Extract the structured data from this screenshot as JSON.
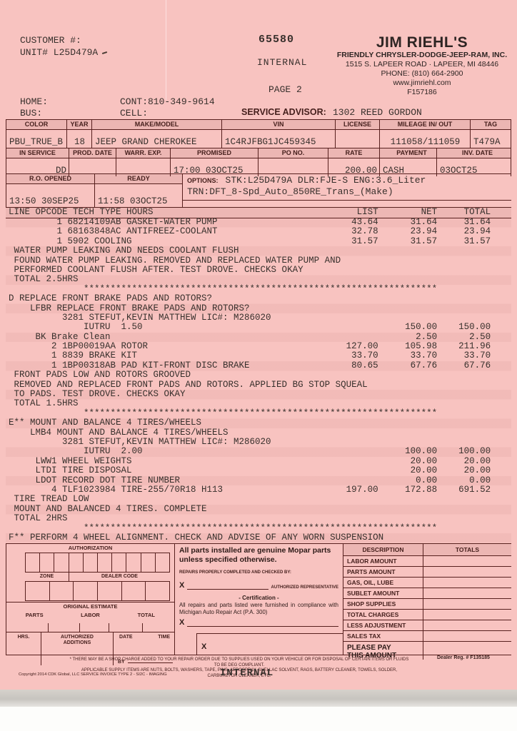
{
  "page": {
    "ro_number": "65580",
    "internal_top": "INTERNAL",
    "page_label": "PAGE 2",
    "paper_color": "#f8c3c0",
    "line_color": "#57201e"
  },
  "dealer": {
    "name": "JIM RIEHL'S",
    "line1": "FRIENDLY CHRYSLER-DODGE-JEEP-RAM, INC.",
    "line2": "1515 S. LAPEER ROAD  ·  LAPEER, MI 48446",
    "line3": "PHONE: (810) 664-2900",
    "line4": "www.jimriehl.com",
    "line5": "F157186"
  },
  "customer": {
    "customer_line": "CUSTOMER #:",
    "unit_line": "UNIT# L25D479A",
    "home_label": "HOME:",
    "cont_value": "CONT:810-349-9614",
    "bus_label": "BUS:",
    "cell_label": "CELL:",
    "advisor_label": "SERVICE ADVISOR:",
    "advisor_value": "1302 REED GORDON"
  },
  "vehicle": {
    "row1_headers": [
      "COLOR",
      "YEAR",
      "MAKE/MODEL",
      "VIN",
      "LICENSE",
      "MILEAGE IN/ OUT",
      "TAG"
    ],
    "row1_values": [
      "PBU_TRUE_B",
      "18",
      "JEEP GRAND CHEROKEE",
      "1C4RJFBG1JC459345",
      "",
      "111058/111059",
      "T479A"
    ],
    "row2_headers": [
      "IN SERVICE",
      "PROD. DATE",
      "WARR. EXP.",
      "PROMISED",
      "PO NO.",
      "RATE",
      "PAYMENT",
      "INV. DATE"
    ],
    "row2_values": [
      "DD",
      "",
      "",
      "17:00 03OCT25",
      "",
      "200.00",
      "CASH",
      "03OCT25"
    ],
    "ro_opened_label": "R.O. OPENED",
    "ready_label": "READY",
    "ro_opened_value": "13:50 30SEP25",
    "ready_value": "11:58 03OCT25",
    "options_label": "OPTIONS:",
    "options_line1": "STK:L25D479A DLR:FJE-S ENG:3.6_Liter",
    "options_line2": "TRN:DFT_8-Spd_Auto_850RE_Trans_(Make)"
  },
  "invoice": {
    "header": {
      "i": 0,
      "t": "LINE OPCODE TECH TYPE HOURS",
      "l": "LIST",
      "n": "NET",
      "o": "TOTAL"
    },
    "lines": [
      {
        "i": 9,
        "t": "1 68214109AB GASKET-WATER PUMP",
        "l": "43.64",
        "n": "31.64",
        "o": "31.64"
      },
      {
        "i": 9,
        "t": "1 68163848AC ANTIFREEZ-COOLANT",
        "l": "32.78",
        "n": "23.94",
        "o": "23.94"
      },
      {
        "i": 9,
        "t": "1 5902 COOLING",
        "l": "31.57",
        "n": "31.57",
        "o": "31.57"
      },
      {
        "i": 1,
        "t": "WATER PUMP LEAKING AND NEEDS COOLANT FLUSH"
      },
      {
        "i": 1,
        "t": "FOUND WATER PUMP LEAKING. REMOVED AND REPLACED WATER PUMP AND"
      },
      {
        "i": 1,
        "t": "PERFORMED COOLANT FLUSH AFTER. TEST DROVE. CHECKS OKAY"
      },
      {
        "i": 1,
        "t": "TOTAL 2.5HRS"
      },
      {
        "i": 14,
        "t": "******************************************************************"
      },
      {
        "i": 0,
        "t": "D REPLACE FRONT BRAKE PADS AND ROTORS?"
      },
      {
        "i": 4,
        "t": "LFBR REPLACE FRONT BRAKE PADS AND ROTORS?"
      },
      {
        "i": 10,
        "t": "3281 STEFUT,KEVIN MATTHEW LIC#: M286020"
      },
      {
        "i": 14,
        "t": "IUTRU  1.50",
        "n": "150.00",
        "o": "150.00"
      },
      {
        "i": 5,
        "t": "BK Brake Clean",
        "n": "2.50",
        "o": "2.50"
      },
      {
        "i": 8,
        "t": "2 1BP00019AA ROTOR",
        "l": "127.00",
        "n": "105.98",
        "o": "211.96"
      },
      {
        "i": 8,
        "t": "1 8839 BRAKE KIT",
        "l": "33.70",
        "n": "33.70",
        "o": "33.70"
      },
      {
        "i": 8,
        "t": "1 1BP00318AB PAD KIT-FRONT DISC BRAKE",
        "l": "80.65",
        "n": "67.76",
        "o": "67.76"
      },
      {
        "i": 1,
        "t": "FRONT PADS LOW AND ROTORS GROOVED"
      },
      {
        "i": 1,
        "t": "REMOVED AND REPLACED FRONT PADS AND ROTORS. APPLIED BG STOP SQUEAL"
      },
      {
        "i": 1,
        "t": "TO PADS. TEST DROVE. CHECKS OKAY"
      },
      {
        "i": 1,
        "t": "TOTAL 1.5HRS"
      },
      {
        "i": 14,
        "t": "******************************************************************"
      },
      {
        "i": 0,
        "t": "E** MOUNT AND BALANCE 4 TIRES/WHEELS"
      },
      {
        "i": 4,
        "t": "LMB4 MOUNT AND BALANCE 4 TIRES/WHEELS"
      },
      {
        "i": 10,
        "t": "3281 STEFUT,KEVIN MATTHEW LIC#: M286020"
      },
      {
        "i": 14,
        "t": "IUTRU  2.00",
        "n": "100.00",
        "o": "100.00"
      },
      {
        "i": 5,
        "t": "LWW1 WHEEL WEIGHTS",
        "n": "20.00",
        "o": "20.00"
      },
      {
        "i": 5,
        "t": "LTDI TIRE DISPOSAL",
        "n": "20.00",
        "o": "20.00"
      },
      {
        "i": 5,
        "t": "LDOT RECORD DOT TIRE NUMBER",
        "n": "0.00",
        "o": "0.00"
      },
      {
        "i": 8,
        "t": "4 TLF1023984 TIRE-255/70R18 H113",
        "l": "197.00",
        "n": "172.88",
        "o": "691.52"
      },
      {
        "i": 1,
        "t": "TIRE TREAD LOW"
      },
      {
        "i": 1,
        "t": "MOUNT AND BALANCED 4 TIRES. COMPLETE"
      },
      {
        "i": 1,
        "t": "TOTAL 2HRS"
      },
      {
        "i": 14,
        "t": "******************************************************************"
      },
      {
        "i": 0,
        "t": "F** PERFORM 4 WHEEL ALIGNMENT. CHECK AND ADVISE OF ANY WORN SUSPENSION"
      }
    ]
  },
  "auth_box": {
    "authorization": "AUTHORIZATION",
    "zone": "ZONE",
    "dealer_code": "DEALER CODE",
    "original_estimate": "ORIGINAL ESTIMATE",
    "parts": "PARTS",
    "labor": "LABOR",
    "total": "TOTAL",
    "hrs": "HRS.",
    "authorized": "AUTHORIZED",
    "additions": "ADDITIONS",
    "date": "DATE",
    "time": "TIME",
    "by": "BY"
  },
  "mopar_box": {
    "line1": "All parts installed are genuine Mopar parts",
    "line2": "unless specified otherwise.",
    "checked_by": "REPAIRS PROPERLY COMPLETED AND CHECKED BY:",
    "x1": "X",
    "auth_rep": "AUTHORIZED REPRESENTATIVE",
    "cert_title": "- Certification -",
    "cert1": "All repairs and parts listed were furnished in compliance with",
    "cert2": "Michigan Auto Repair Act (P.A. 300)",
    "x2": "X",
    "x3": "X"
  },
  "totals_box": {
    "desc_header": "DESCRIPTION",
    "totals_header": "TOTALS",
    "rows": [
      "LABOR AMOUNT",
      "PARTS AMOUNT",
      "GAS, OIL, LUBE",
      "SUBLET AMOUNT",
      "SHOP SUPPLIES",
      "TOTAL CHARGES",
      "LESS ADJUSTMENT",
      "SALES TAX"
    ],
    "pay_line1": "PLEASE PAY",
    "pay_line2": "THIS AMOUNT"
  },
  "footer": {
    "note1": "*  THERE MAY BE A SHOP CHARGE ADDED TO YOUR REPAIR ORDER DUE TO SUPPLIES USED ON YOUR VEHICLE OR FOR DISPOSAL OF CERTAIN ITEMS OR FLUIDS TO BE DEG COMPLIANT.",
    "note2": "APPLICABLE SUPPLY ITEMS ARE NUTS, BOLTS, WASHERS, TAPE, PINS, AEROSPRAY, SHELLAC SOLVENT, RAGS, BATTERY CLEANER, TOWELS, SOLDER, CARBURETOR CLEANER, ETC.",
    "dealer_reg": "Dealer Reg. # F135185",
    "copyright": "Copyright 2014 CDK Global, LLC    SERVICE INVOICE TYPE 2 - SI2C - IMAGING",
    "internal": "INTERNAL"
  }
}
